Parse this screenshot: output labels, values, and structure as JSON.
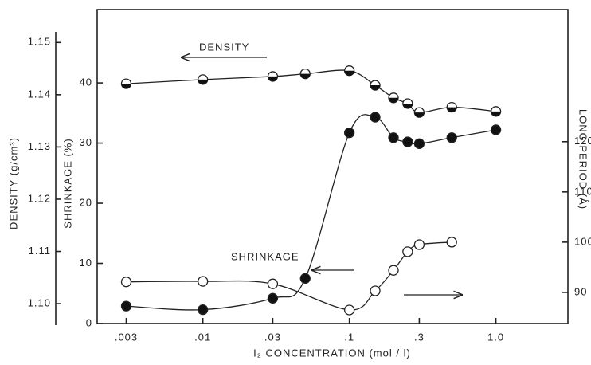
{
  "chart_data": {
    "type": "line",
    "x_label": "I₂ CONCENTRATION (mol / l)",
    "y_label": "SHRINKAGE (%)",
    "y2_label": "LONG PERIOD (Å)",
    "y3_label": "DENSITY (g/cm³)",
    "xscale": "log",
    "xlim": [
      0.0019,
      3.1
    ],
    "xticks": [
      {
        "value": 0.003,
        "label": ".003"
      },
      {
        "value": 0.01,
        "label": ".01"
      },
      {
        "value": 0.03,
        "label": ".03"
      },
      {
        "value": 0.1,
        "label": ".1"
      },
      {
        "value": 0.3,
        "label": ".3"
      },
      {
        "value": 1.0,
        "label": "1.0"
      }
    ],
    "ylim": [
      0,
      52.2
    ],
    "yticks": [
      0,
      10,
      20,
      30,
      40
    ],
    "y2lim": [
      83.8,
      146.3
    ],
    "y2ticks": [
      90,
      100,
      110,
      120
    ],
    "y3lim": [
      1.0962,
      1.1563
    ],
    "y3ticks": [
      {
        "value": 1.1,
        "label": "1.10"
      },
      {
        "value": 1.11,
        "label": "1.11"
      },
      {
        "value": 1.12,
        "label": "1.12"
      },
      {
        "value": 1.13,
        "label": "1.13"
      },
      {
        "value": 1.14,
        "label": "1.14"
      },
      {
        "value": 1.15,
        "label": "1.15"
      }
    ],
    "series": [
      {
        "name": "DENSITY",
        "axis": "y3",
        "marker": "half",
        "x": [
          0.003,
          0.01,
          0.03,
          0.05,
          0.1,
          0.15,
          0.2,
          0.25,
          0.3,
          0.5,
          1.0
        ],
        "values": [
          1.1421,
          1.1429,
          1.1435,
          1.144,
          1.1446,
          1.1418,
          1.1394,
          1.1383,
          1.1366,
          1.1376,
          1.1368
        ]
      },
      {
        "name": "SHRINKAGE",
        "axis": "y",
        "marker": "filled",
        "x": [
          0.003,
          0.01,
          0.03,
          0.05,
          0.1,
          0.15,
          0.2,
          0.25,
          0.3,
          0.5,
          1.0
        ],
        "values": [
          2.9,
          2.3,
          4.2,
          7.5,
          31.7,
          34.3,
          30.9,
          30.2,
          29.9,
          30.9,
          32.2
        ]
      },
      {
        "axis": "y2",
        "marker": "open",
        "x": [
          0.003,
          0.01,
          0.03,
          0.1,
          0.15,
          0.2,
          0.25,
          0.3,
          0.5
        ],
        "values": [
          92.1,
          92.2,
          91.7,
          86.5,
          90.3,
          94.4,
          98.1,
          99.5,
          100.0
        ]
      }
    ]
  }
}
